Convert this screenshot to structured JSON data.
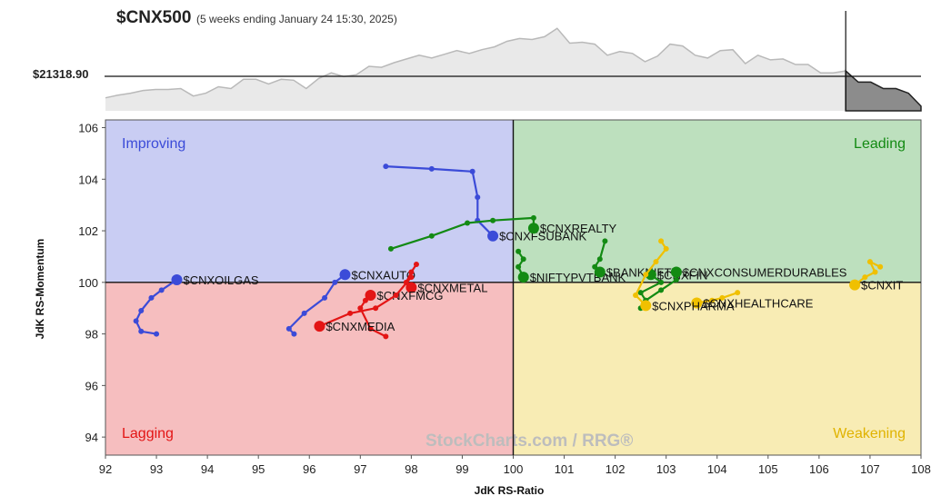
{
  "header": {
    "symbol": "$CNX500",
    "subtitle": "(5 weeks ending January 24 15:30, 2025)",
    "price_label": "$21318.90"
  },
  "watermark": {
    "text": "StockCharts.com / RRG®"
  },
  "colors": {
    "improving": "#3b4bd8",
    "leading": "#138a13",
    "lagging": "#e31515",
    "weakening": "#f0c000",
    "bg_improving": "#c9cdf3",
    "bg_leading": "#bde0be",
    "bg_lagging": "#f6bebf",
    "bg_weakening": "#f8ecb4"
  },
  "chart_data": {
    "type": "scatter",
    "xlabel": "JdK RS-Ratio",
    "ylabel": "JdK RS-Momentum",
    "xlim": [
      92,
      108
    ],
    "ylim": [
      93.3,
      106.3
    ],
    "x_ticks": [
      "92",
      "93",
      "94",
      "95",
      "96",
      "97",
      "98",
      "99",
      "100",
      "101",
      "102",
      "103",
      "104",
      "105",
      "106",
      "107",
      "108"
    ],
    "y_ticks": [
      "94",
      "96",
      "98",
      "100",
      "102",
      "104",
      "106"
    ],
    "quadrants": {
      "improving": "Improving",
      "leading": "Leading",
      "lagging": "Lagging",
      "weakening": "Weakening"
    },
    "benchmark_sparkline": [
      0.14,
      0.17,
      0.19,
      0.22,
      0.23,
      0.23,
      0.24,
      0.16,
      0.19,
      0.26,
      0.24,
      0.34,
      0.34,
      0.29,
      0.34,
      0.33,
      0.24,
      0.35,
      0.41,
      0.37,
      0.39,
      0.48,
      0.47,
      0.52,
      0.56,
      0.6,
      0.57,
      0.61,
      0.65,
      0.62,
      0.66,
      0.69,
      0.75,
      0.78,
      0.77,
      0.8,
      0.89,
      0.73,
      0.74,
      0.72,
      0.6,
      0.64,
      0.62,
      0.53,
      0.59,
      0.72,
      0.7,
      0.6,
      0.57,
      0.65,
      0.66,
      0.51,
      0.6,
      0.55,
      0.56,
      0.5,
      0.5,
      0.41,
      0.41,
      0.43,
      0.31,
      0.31,
      0.24,
      0.24,
      0.19,
      0.05
    ],
    "series": [
      {
        "name": "$CNXOILGAS",
        "color": "improving",
        "points": [
          [
            93.0,
            98.0
          ],
          [
            92.7,
            98.1
          ],
          [
            92.6,
            98.5
          ],
          [
            92.7,
            98.9
          ],
          [
            92.9,
            99.4
          ],
          [
            93.1,
            99.7
          ],
          [
            93.4,
            100.1
          ]
        ]
      },
      {
        "name": "$CNXFSUBANK",
        "color": "improving",
        "points": [
          [
            97.5,
            104.5
          ],
          [
            98.4,
            104.4
          ],
          [
            99.2,
            104.3
          ],
          [
            99.3,
            103.3
          ],
          [
            99.3,
            102.4
          ],
          [
            99.6,
            101.8
          ]
        ]
      },
      {
        "name": "$CNXAUTO",
        "color": "improving",
        "points": [
          [
            95.7,
            98.0
          ],
          [
            95.6,
            98.2
          ],
          [
            95.9,
            98.8
          ],
          [
            96.3,
            99.4
          ],
          [
            96.5,
            100.0
          ],
          [
            96.7,
            100.3
          ]
        ]
      },
      {
        "name": "$CNXMETAL",
        "color": "lagging",
        "points": [
          [
            98.1,
            100.7
          ],
          [
            98.0,
            100.4
          ],
          [
            97.9,
            100.0
          ],
          [
            98.0,
            99.8
          ]
        ]
      },
      {
        "name": "$CNXFMCG",
        "color": "lagging",
        "points": [
          [
            97.5,
            97.9
          ],
          [
            97.2,
            98.2
          ],
          [
            97.0,
            99.0
          ],
          [
            97.1,
            99.3
          ],
          [
            97.2,
            99.5
          ]
        ]
      },
      {
        "name": "$CNXMEDIA",
        "color": "lagging",
        "points": [
          [
            98.0,
            100.2
          ],
          [
            97.7,
            99.5
          ],
          [
            97.3,
            99.0
          ],
          [
            96.8,
            98.8
          ],
          [
            96.2,
            98.3
          ]
        ]
      },
      {
        "name": "$CNXREALTY",
        "color": "leading",
        "points": [
          [
            97.6,
            101.3
          ],
          [
            98.4,
            101.8
          ],
          [
            99.1,
            102.3
          ],
          [
            99.6,
            102.4
          ],
          [
            100.4,
            102.5
          ],
          [
            100.4,
            102.1
          ]
        ]
      },
      {
        "name": "$NIFTYPVTBANK",
        "color": "leading",
        "points": [
          [
            100.1,
            101.2
          ],
          [
            100.2,
            100.9
          ],
          [
            100.1,
            100.6
          ],
          [
            100.2,
            100.2
          ]
        ]
      },
      {
        "name": "$BANKNIFTY",
        "color": "leading",
        "points": [
          [
            101.8,
            101.6
          ],
          [
            101.7,
            100.9
          ],
          [
            101.6,
            100.6
          ],
          [
            101.7,
            100.4
          ]
        ]
      },
      {
        "name": "$CNXFIN",
        "color": "leading",
        "points": [
          [
            102.6,
            99.3
          ],
          [
            102.5,
            99.6
          ],
          [
            102.9,
            100.0
          ],
          [
            102.7,
            100.3
          ]
        ]
      },
      {
        "name": "$CNXCONSUMERDURABLES",
        "color": "leading",
        "points": [
          [
            102.5,
            99.0
          ],
          [
            102.6,
            99.3
          ],
          [
            102.9,
            99.7
          ],
          [
            103.2,
            100.1
          ],
          [
            103.2,
            100.4
          ]
        ]
      },
      {
        "name": "$CNXIT",
        "color": "weakening",
        "points": [
          [
            107.2,
            100.6
          ],
          [
            107.0,
            100.8
          ],
          [
            107.1,
            100.4
          ],
          [
            106.9,
            100.2
          ],
          [
            106.7,
            99.9
          ]
        ]
      },
      {
        "name": "$CNXHEALTHCARE",
        "color": "weakening",
        "points": [
          [
            104.4,
            99.6
          ],
          [
            104.1,
            99.4
          ],
          [
            103.9,
            99.3
          ],
          [
            103.6,
            99.2
          ]
        ]
      },
      {
        "name": "$CNXPHARMA",
        "color": "weakening",
        "points": [
          [
            102.9,
            101.6
          ],
          [
            103.0,
            101.3
          ],
          [
            102.8,
            100.8
          ],
          [
            102.6,
            100.3
          ],
          [
            102.4,
            99.5
          ],
          [
            102.6,
            99.1
          ]
        ]
      }
    ]
  }
}
